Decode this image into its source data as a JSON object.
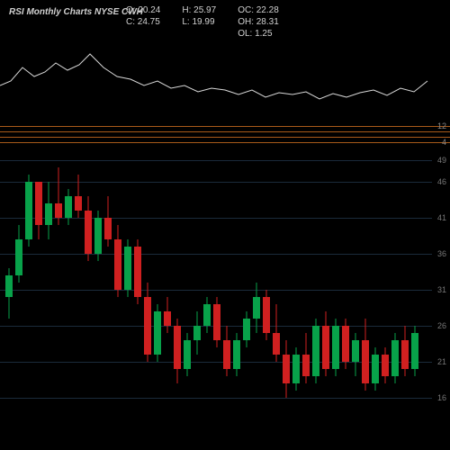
{
  "header": {
    "title": "RSI Monthly Charts NYSE CWH"
  },
  "stats": {
    "o_label": "O:",
    "o_val": "20.24",
    "c_label": "C:",
    "c_val": "24.75",
    "h_label": "H:",
    "h_val": "25.97",
    "l_label": "L:",
    "l_val": "19.99",
    "oc_label": "OC:",
    "oc_val": "22.28",
    "oh_label": "OH:",
    "oh_val": "28.31",
    "ol_label": "OL:",
    "ol_val": "1.25"
  },
  "indicator": {
    "type": "line",
    "stroke": "#d8d8d8",
    "stroke_width": 1,
    "points": [
      [
        0,
        55
      ],
      [
        12,
        50
      ],
      [
        25,
        35
      ],
      [
        38,
        45
      ],
      [
        50,
        40
      ],
      [
        62,
        30
      ],
      [
        75,
        38
      ],
      [
        88,
        32
      ],
      [
        100,
        20
      ],
      [
        115,
        35
      ],
      [
        130,
        45
      ],
      [
        145,
        48
      ],
      [
        160,
        55
      ],
      [
        175,
        50
      ],
      [
        190,
        58
      ],
      [
        205,
        55
      ],
      [
        220,
        62
      ],
      [
        235,
        58
      ],
      [
        250,
        60
      ],
      [
        265,
        65
      ],
      [
        280,
        60
      ],
      [
        295,
        68
      ],
      [
        310,
        63
      ],
      [
        325,
        65
      ],
      [
        340,
        62
      ],
      [
        355,
        70
      ],
      [
        370,
        64
      ],
      [
        385,
        68
      ],
      [
        400,
        63
      ],
      [
        415,
        60
      ],
      [
        430,
        66
      ],
      [
        445,
        58
      ],
      [
        460,
        62
      ],
      [
        475,
        50
      ]
    ]
  },
  "separator": {
    "color": "#a85a1a",
    "lines_y": [
      0,
      6,
      12,
      18
    ],
    "labels": [
      "12",
      "",
      "",
      "4"
    ]
  },
  "price_chart": {
    "type": "candlestick",
    "background": "#000000",
    "grid_color": "#1a2a3a",
    "up_color": "#08a24a",
    "down_color": "#d02020",
    "ymin": 10,
    "ymax": 50,
    "gridlines": [
      49,
      46,
      41,
      36,
      31,
      26,
      21,
      16
    ],
    "gridlabels": [
      "49",
      "46",
      "41",
      "36",
      "31",
      "26",
      "21",
      "16"
    ],
    "candle_width": 8,
    "candle_gap": 3,
    "candles": [
      {
        "o": 30,
        "h": 34,
        "l": 27,
        "c": 33,
        "dir": "up"
      },
      {
        "o": 33,
        "h": 40,
        "l": 32,
        "c": 38,
        "dir": "up"
      },
      {
        "o": 38,
        "h": 47,
        "l": 37,
        "c": 46,
        "dir": "up"
      },
      {
        "o": 46,
        "h": 46,
        "l": 38,
        "c": 40,
        "dir": "down"
      },
      {
        "o": 40,
        "h": 46,
        "l": 38,
        "c": 43,
        "dir": "up"
      },
      {
        "o": 43,
        "h": 48,
        "l": 40,
        "c": 41,
        "dir": "down"
      },
      {
        "o": 41,
        "h": 45,
        "l": 40,
        "c": 44,
        "dir": "up"
      },
      {
        "o": 44,
        "h": 47,
        "l": 41,
        "c": 42,
        "dir": "down"
      },
      {
        "o": 42,
        "h": 44,
        "l": 35,
        "c": 36,
        "dir": "down"
      },
      {
        "o": 36,
        "h": 42,
        "l": 35,
        "c": 41,
        "dir": "up"
      },
      {
        "o": 41,
        "h": 44,
        "l": 37,
        "c": 38,
        "dir": "down"
      },
      {
        "o": 38,
        "h": 40,
        "l": 30,
        "c": 31,
        "dir": "down"
      },
      {
        "o": 31,
        "h": 38,
        "l": 30,
        "c": 37,
        "dir": "up"
      },
      {
        "o": 37,
        "h": 38,
        "l": 29,
        "c": 30,
        "dir": "down"
      },
      {
        "o": 30,
        "h": 32,
        "l": 21,
        "c": 22,
        "dir": "down"
      },
      {
        "o": 22,
        "h": 29,
        "l": 21,
        "c": 28,
        "dir": "up"
      },
      {
        "o": 28,
        "h": 30,
        "l": 25,
        "c": 26,
        "dir": "down"
      },
      {
        "o": 26,
        "h": 27,
        "l": 18,
        "c": 20,
        "dir": "down"
      },
      {
        "o": 20,
        "h": 25,
        "l": 19,
        "c": 24,
        "dir": "up"
      },
      {
        "o": 24,
        "h": 28,
        "l": 22,
        "c": 26,
        "dir": "up"
      },
      {
        "o": 26,
        "h": 30,
        "l": 25,
        "c": 29,
        "dir": "up"
      },
      {
        "o": 29,
        "h": 30,
        "l": 23,
        "c": 24,
        "dir": "down"
      },
      {
        "o": 24,
        "h": 26,
        "l": 19,
        "c": 20,
        "dir": "down"
      },
      {
        "o": 20,
        "h": 25,
        "l": 19,
        "c": 24,
        "dir": "up"
      },
      {
        "o": 24,
        "h": 28,
        "l": 23,
        "c": 27,
        "dir": "up"
      },
      {
        "o": 27,
        "h": 32,
        "l": 25,
        "c": 30,
        "dir": "up"
      },
      {
        "o": 30,
        "h": 31,
        "l": 24,
        "c": 25,
        "dir": "down"
      },
      {
        "o": 25,
        "h": 29,
        "l": 21,
        "c": 22,
        "dir": "down"
      },
      {
        "o": 22,
        "h": 24,
        "l": 16,
        "c": 18,
        "dir": "down"
      },
      {
        "o": 18,
        "h": 23,
        "l": 17,
        "c": 22,
        "dir": "up"
      },
      {
        "o": 22,
        "h": 25,
        "l": 18,
        "c": 19,
        "dir": "down"
      },
      {
        "o": 19,
        "h": 27,
        "l": 18,
        "c": 26,
        "dir": "up"
      },
      {
        "o": 26,
        "h": 28,
        "l": 19,
        "c": 20,
        "dir": "down"
      },
      {
        "o": 20,
        "h": 27,
        "l": 19,
        "c": 26,
        "dir": "up"
      },
      {
        "o": 26,
        "h": 27,
        "l": 20,
        "c": 21,
        "dir": "down"
      },
      {
        "o": 21,
        "h": 25,
        "l": 19,
        "c": 24,
        "dir": "up"
      },
      {
        "o": 24,
        "h": 27,
        "l": 17,
        "c": 18,
        "dir": "down"
      },
      {
        "o": 18,
        "h": 23,
        "l": 17,
        "c": 22,
        "dir": "up"
      },
      {
        "o": 22,
        "h": 23,
        "l": 18,
        "c": 19,
        "dir": "down"
      },
      {
        "o": 19,
        "h": 25,
        "l": 18,
        "c": 24,
        "dir": "up"
      },
      {
        "o": 24,
        "h": 26,
        "l": 19,
        "c": 20,
        "dir": "down"
      },
      {
        "o": 20,
        "h": 26,
        "l": 19,
        "c": 25,
        "dir": "up"
      }
    ]
  }
}
